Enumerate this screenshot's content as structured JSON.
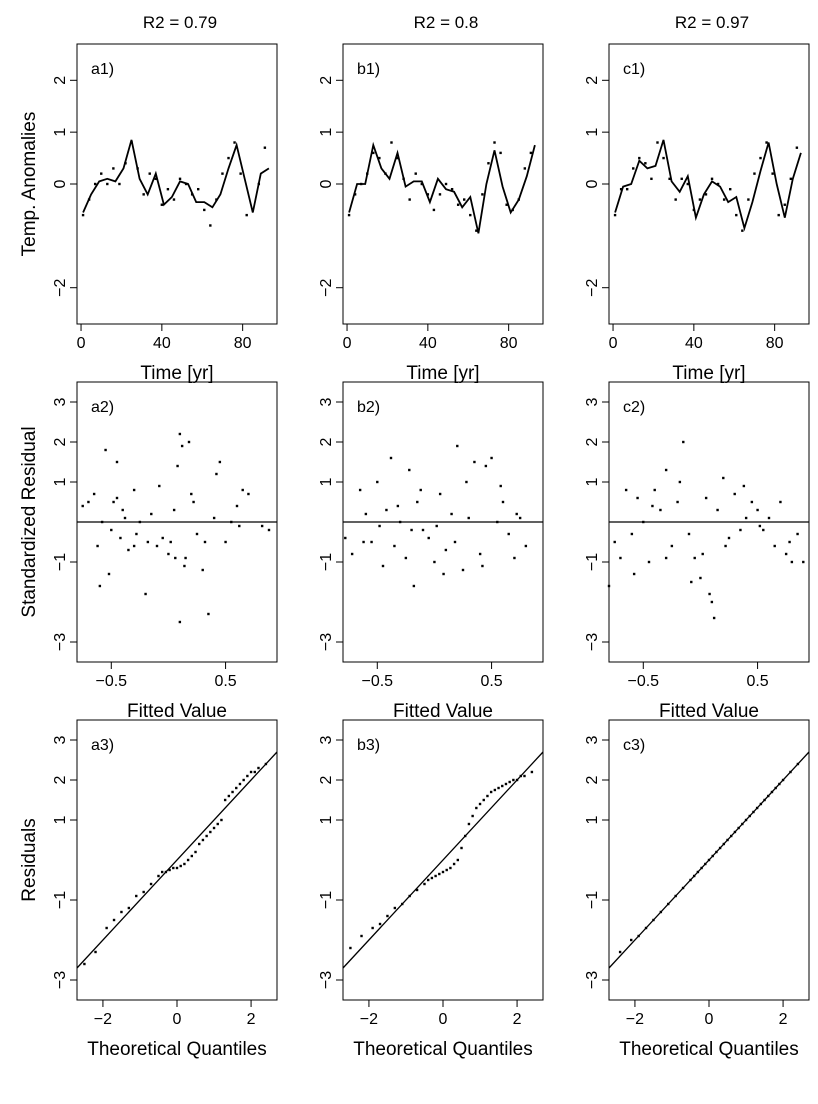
{
  "column_titles": [
    "R2 = 0.79",
    "R2 = 0.8",
    "R2 = 0.97"
  ],
  "row_ylabels": [
    "Temp. Anomalies",
    "Standardized Residual",
    "Residuals"
  ],
  "chart_data": [
    {
      "type": "line",
      "row": 0,
      "col": 0,
      "panel_label": "a1)",
      "xlabel": "Time [yr]",
      "ylabel": "Temp. Anomalies",
      "xlim": [
        -2,
        97
      ],
      "ylim": [
        -2.7,
        2.7
      ],
      "xticks": [
        0,
        40,
        80
      ],
      "yticks": [
        -2,
        0,
        1,
        2
      ],
      "ytick_labels": [
        "−2",
        "0",
        "1",
        "2"
      ],
      "series": [
        {
          "kind": "points",
          "x": [
            1,
            4,
            7,
            10,
            13,
            16,
            19,
            22,
            25,
            28,
            31,
            34,
            37,
            40,
            43,
            46,
            49,
            52,
            55,
            58,
            61,
            64,
            67,
            70,
            73,
            76,
            79,
            82,
            85,
            88,
            91
          ],
          "y": [
            -0.6,
            -0.3,
            0.0,
            0.2,
            0.0,
            0.3,
            0.0,
            0.4,
            0.8,
            0.3,
            -0.2,
            0.2,
            0.1,
            -0.4,
            -0.1,
            -0.3,
            0.1,
            0.0,
            -0.2,
            -0.1,
            -0.5,
            -0.8,
            -0.3,
            0.2,
            0.5,
            0.8,
            0.2,
            -0.6,
            -0.5,
            0.0,
            0.7
          ]
        },
        {
          "kind": "line",
          "x": [
            1,
            5,
            9,
            13,
            17,
            21,
            25,
            29,
            33,
            37,
            41,
            45,
            49,
            53,
            57,
            61,
            65,
            69,
            73,
            77,
            81,
            85,
            89,
            93
          ],
          "y": [
            -0.55,
            -0.2,
            0.05,
            0.1,
            0.05,
            0.3,
            0.85,
            0.1,
            -0.2,
            0.2,
            -0.4,
            -0.25,
            0.05,
            0.0,
            -0.35,
            -0.35,
            -0.45,
            -0.2,
            0.3,
            0.75,
            0.1,
            -0.55,
            0.2,
            0.3
          ]
        }
      ]
    },
    {
      "type": "line",
      "row": 0,
      "col": 1,
      "panel_label": "b1)",
      "xlabel": "Time [yr]",
      "ylabel": "",
      "xlim": [
        -2,
        97
      ],
      "ylim": [
        -2.7,
        2.7
      ],
      "xticks": [
        0,
        40,
        80
      ],
      "yticks": [
        -2,
        0,
        1,
        2
      ],
      "ytick_labels": [
        "−2",
        "0",
        "1",
        "2"
      ],
      "series": [
        {
          "kind": "points",
          "x": [
            1,
            4,
            7,
            10,
            13,
            16,
            19,
            22,
            25,
            28,
            31,
            34,
            37,
            40,
            43,
            46,
            49,
            52,
            55,
            58,
            61,
            64,
            67,
            70,
            73,
            76,
            79,
            82,
            85,
            88,
            91
          ],
          "y": [
            -0.6,
            -0.2,
            0.0,
            0.2,
            0.6,
            0.5,
            0.2,
            0.8,
            0.5,
            0.1,
            -0.3,
            0.2,
            0.0,
            -0.2,
            -0.5,
            -0.2,
            0.0,
            -0.1,
            -0.4,
            -0.3,
            -0.6,
            -0.9,
            -0.2,
            0.4,
            0.8,
            0.6,
            -0.4,
            -0.5,
            -0.3,
            0.3,
            0.6
          ]
        },
        {
          "kind": "line",
          "x": [
            1,
            5,
            9,
            13,
            17,
            21,
            25,
            29,
            33,
            37,
            41,
            45,
            49,
            53,
            57,
            61,
            65,
            69,
            73,
            77,
            81,
            85,
            89,
            93
          ],
          "y": [
            -0.55,
            0.0,
            0.0,
            0.75,
            0.3,
            0.1,
            0.6,
            -0.05,
            0.05,
            0.05,
            -0.35,
            0.1,
            -0.1,
            -0.15,
            -0.45,
            -0.25,
            -0.95,
            0.0,
            0.65,
            -0.05,
            -0.55,
            -0.3,
            0.15,
            0.75
          ]
        }
      ]
    },
    {
      "type": "line",
      "row": 0,
      "col": 2,
      "panel_label": "c1)",
      "xlabel": "Time [yr]",
      "ylabel": "",
      "xlim": [
        -2,
        97
      ],
      "ylim": [
        -2.7,
        2.7
      ],
      "xticks": [
        0,
        40,
        80
      ],
      "yticks": [
        -2,
        0,
        1,
        2
      ],
      "ytick_labels": [
        "−2",
        "0",
        "1",
        "2"
      ],
      "series": [
        {
          "kind": "points",
          "x": [
            1,
            4,
            7,
            10,
            13,
            16,
            19,
            22,
            25,
            28,
            31,
            34,
            37,
            40,
            43,
            46,
            49,
            52,
            55,
            58,
            61,
            64,
            67,
            70,
            73,
            76,
            79,
            82,
            85,
            88,
            91
          ],
          "y": [
            -0.6,
            -0.1,
            -0.1,
            0.3,
            0.5,
            0.4,
            0.1,
            0.8,
            0.5,
            0.1,
            -0.3,
            0.1,
            0.0,
            -0.5,
            -0.3,
            -0.2,
            0.1,
            0.0,
            -0.3,
            -0.1,
            -0.6,
            -0.9,
            -0.3,
            0.2,
            0.5,
            0.8,
            0.2,
            -0.6,
            -0.4,
            0.1,
            0.7
          ]
        },
        {
          "kind": "line",
          "x": [
            1,
            5,
            9,
            13,
            17,
            21,
            25,
            29,
            33,
            37,
            41,
            45,
            49,
            53,
            57,
            61,
            65,
            69,
            73,
            77,
            81,
            85,
            89,
            93
          ],
          "y": [
            -0.55,
            -0.05,
            0.0,
            0.45,
            0.3,
            0.35,
            0.85,
            0.05,
            -0.15,
            0.15,
            -0.65,
            -0.2,
            0.05,
            -0.05,
            -0.35,
            -0.25,
            -0.85,
            -0.35,
            0.25,
            0.8,
            0.0,
            -0.65,
            0.1,
            0.6
          ]
        }
      ]
    },
    {
      "type": "scatter",
      "row": 1,
      "col": 0,
      "panel_label": "a2)",
      "xlabel": "Fitted Value",
      "ylabel": "Standardized Residual",
      "xlim": [
        -0.8,
        0.95
      ],
      "ylim": [
        -3.5,
        3.5
      ],
      "xticks": [
        -0.5,
        0.5
      ],
      "xtick_labels": [
        "−0.5",
        "0.5"
      ],
      "yticks": [
        -3,
        -1,
        1,
        2,
        3
      ],
      "ytick_labels": [
        "−3",
        "−1",
        "1",
        "2",
        "3"
      ],
      "hline": 0,
      "x": [
        -0.75,
        -0.7,
        -0.65,
        -0.6,
        -0.58,
        -0.55,
        -0.5,
        -0.48,
        -0.45,
        -0.42,
        -0.4,
        -0.35,
        -0.3,
        -0.28,
        -0.25,
        -0.2,
        -0.15,
        -0.1,
        -0.05,
        0.0,
        0.02,
        0.05,
        0.08,
        0.1,
        0.12,
        0.15,
        0.18,
        0.2,
        0.25,
        0.3,
        0.35,
        0.4,
        0.45,
        0.5,
        0.55,
        0.6,
        0.65,
        0.7,
        -0.62,
        -0.52,
        -0.38,
        -0.18,
        -0.08,
        0.06,
        0.14,
        0.22,
        0.32,
        0.42,
        0.62,
        0.82,
        0.88,
        -0.45,
        -0.3,
        0.1
      ],
      "y": [
        0.4,
        0.5,
        0.7,
        -1.6,
        0.0,
        1.8,
        -0.2,
        0.5,
        1.5,
        -0.4,
        0.3,
        -0.7,
        0.8,
        -0.3,
        0.0,
        -1.8,
        0.2,
        -0.6,
        -0.4,
        -0.8,
        -0.5,
        0.3,
        1.4,
        2.2,
        1.9,
        -0.9,
        2.0,
        0.7,
        -0.3,
        -1.2,
        -2.3,
        0.1,
        1.5,
        -0.5,
        0.0,
        0.4,
        0.8,
        0.7,
        -0.6,
        -1.3,
        0.1,
        -0.5,
        0.9,
        -0.9,
        -1.1,
        0.5,
        -0.5,
        1.2,
        -0.1,
        -0.1,
        -0.2,
        0.6,
        -0.6,
        -2.5
      ]
    },
    {
      "type": "scatter",
      "row": 1,
      "col": 1,
      "panel_label": "b2)",
      "xlabel": "Fitted Value",
      "ylabel": "",
      "xlim": [
        -0.8,
        0.95
      ],
      "ylim": [
        -3.5,
        3.5
      ],
      "xticks": [
        -0.5,
        0.5
      ],
      "xtick_labels": [
        "−0.5",
        "0.5"
      ],
      "yticks": [
        -3,
        -1,
        1,
        2,
        3
      ],
      "ytick_labels": [
        "−3",
        "−1",
        "1",
        "2",
        "3"
      ],
      "hline": 0,
      "x": [
        -0.78,
        -0.72,
        -0.65,
        -0.6,
        -0.55,
        -0.5,
        -0.45,
        -0.42,
        -0.38,
        -0.35,
        -0.3,
        -0.25,
        -0.22,
        -0.18,
        -0.15,
        -0.1,
        -0.05,
        0.0,
        0.05,
        0.1,
        0.15,
        0.2,
        0.25,
        0.3,
        0.35,
        0.4,
        0.45,
        0.5,
        0.55,
        0.6,
        0.65,
        0.7,
        0.75,
        0.8,
        -0.48,
        -0.32,
        -0.12,
        0.08,
        0.18,
        0.28,
        0.42,
        0.58,
        0.72,
        -0.62,
        -0.2,
        0.02
      ],
      "y": [
        -0.4,
        -0.8,
        0.8,
        0.2,
        -0.5,
        1.0,
        -1.1,
        0.3,
        1.6,
        -0.6,
        0.0,
        -0.9,
        1.3,
        -1.6,
        0.5,
        -0.2,
        -0.4,
        -1.0,
        0.7,
        -0.7,
        0.2,
        1.9,
        -1.2,
        0.1,
        1.5,
        -0.8,
        1.4,
        1.6,
        0.0,
        0.5,
        -0.3,
        -0.9,
        0.1,
        -0.6,
        -0.1,
        0.4,
        0.8,
        -1.3,
        -0.5,
        1.0,
        -1.1,
        0.9,
        0.2,
        -0.5,
        -0.2,
        -0.1
      ]
    },
    {
      "type": "scatter",
      "row": 1,
      "col": 2,
      "panel_label": "c2)",
      "xlabel": "Fitted Value",
      "ylabel": "",
      "xlim": [
        -0.8,
        0.95
      ],
      "ylim": [
        -3.5,
        3.5
      ],
      "xticks": [
        -0.5,
        0.5
      ],
      "xtick_labels": [
        "−0.5",
        "0.5"
      ],
      "yticks": [
        -3,
        -1,
        1,
        2,
        3
      ],
      "ytick_labels": [
        "−3",
        "−1",
        "1",
        "2",
        "3"
      ],
      "hline": 0,
      "x": [
        -0.8,
        -0.75,
        -0.7,
        -0.65,
        -0.6,
        -0.55,
        -0.5,
        -0.45,
        -0.4,
        -0.35,
        -0.3,
        -0.25,
        -0.2,
        -0.15,
        -0.1,
        -0.05,
        0.0,
        0.05,
        0.1,
        0.15,
        0.2,
        0.25,
        0.3,
        0.35,
        0.4,
        0.45,
        0.5,
        0.55,
        0.6,
        0.65,
        0.7,
        0.75,
        0.8,
        0.85,
        0.9,
        -0.58,
        -0.42,
        -0.18,
        0.02,
        0.08,
        0.12,
        0.38,
        0.52,
        0.78,
        -0.3,
        -0.08,
        0.22
      ],
      "y": [
        -1.6,
        -0.5,
        -0.9,
        0.8,
        -0.3,
        0.6,
        0.0,
        -1.0,
        0.8,
        0.3,
        1.3,
        -0.6,
        0.5,
        2.0,
        -0.3,
        -0.9,
        -1.4,
        0.6,
        -2.0,
        0.3,
        1.1,
        -0.4,
        0.7,
        -0.2,
        0.1,
        0.5,
        0.3,
        -0.2,
        0.1,
        -0.6,
        0.5,
        -0.8,
        -1.0,
        -0.3,
        -1.0,
        -1.3,
        0.4,
        1.0,
        -0.8,
        -1.8,
        -2.4,
        0.9,
        -0.1,
        -0.5,
        -0.9,
        -1.5,
        -0.6
      ]
    },
    {
      "type": "scatter",
      "row": 2,
      "col": 0,
      "panel_label": "a3)",
      "xlabel": "Theoretical Quantiles",
      "ylabel": "Residuals",
      "xlim": [
        -2.7,
        2.7
      ],
      "ylim": [
        -3.5,
        3.5
      ],
      "xticks": [
        -2,
        0,
        2
      ],
      "xtick_labels": [
        "−2",
        "0",
        "2"
      ],
      "yticks": [
        -3,
        -1,
        1,
        2,
        3
      ],
      "ytick_labels": [
        "−3",
        "−1",
        "1",
        "2",
        "3"
      ],
      "refline": [
        [
          -2.7,
          -2.7
        ],
        [
          2.7,
          2.7
        ]
      ],
      "x": [
        -2.5,
        -2.2,
        -1.9,
        -1.7,
        -1.5,
        -1.3,
        -1.1,
        -0.9,
        -0.7,
        -0.5,
        -0.4,
        -0.3,
        -0.2,
        -0.1,
        0.0,
        0.1,
        0.2,
        0.3,
        0.4,
        0.5,
        0.6,
        0.7,
        0.8,
        0.9,
        1.0,
        1.1,
        1.2,
        1.3,
        1.4,
        1.5,
        1.6,
        1.7,
        1.8,
        1.9,
        2.0,
        2.1,
        2.2,
        2.4
      ],
      "y": [
        -2.6,
        -2.3,
        -1.7,
        -1.5,
        -1.3,
        -1.2,
        -0.9,
        -0.8,
        -0.6,
        -0.4,
        -0.3,
        -0.3,
        -0.25,
        -0.2,
        -0.2,
        -0.15,
        -0.1,
        0.0,
        0.1,
        0.2,
        0.4,
        0.5,
        0.6,
        0.7,
        0.8,
        0.9,
        1.0,
        1.5,
        1.6,
        1.7,
        1.8,
        1.9,
        2.0,
        2.1,
        2.2,
        2.2,
        2.3,
        2.4
      ]
    },
    {
      "type": "scatter",
      "row": 2,
      "col": 1,
      "panel_label": "b3)",
      "xlabel": "Theoretical Quantiles",
      "ylabel": "",
      "xlim": [
        -2.7,
        2.7
      ],
      "ylim": [
        -3.5,
        3.5
      ],
      "xticks": [
        -2,
        0,
        2
      ],
      "xtick_labels": [
        "−2",
        "0",
        "2"
      ],
      "yticks": [
        -3,
        -1,
        1,
        2,
        3
      ],
      "ytick_labels": [
        "−3",
        "−1",
        "1",
        "2",
        "3"
      ],
      "refline": [
        [
          -2.7,
          -2.7
        ],
        [
          2.7,
          2.7
        ]
      ],
      "x": [
        -2.5,
        -2.2,
        -1.9,
        -1.7,
        -1.5,
        -1.3,
        -1.1,
        -0.9,
        -0.7,
        -0.5,
        -0.4,
        -0.3,
        -0.2,
        -0.1,
        0.0,
        0.1,
        0.2,
        0.3,
        0.4,
        0.5,
        0.6,
        0.7,
        0.8,
        0.9,
        1.0,
        1.1,
        1.2,
        1.3,
        1.4,
        1.5,
        1.6,
        1.7,
        1.8,
        1.9,
        2.0,
        2.1,
        2.2,
        2.4
      ],
      "y": [
        -2.2,
        -1.9,
        -1.7,
        -1.6,
        -1.4,
        -1.2,
        -1.1,
        -0.9,
        -0.75,
        -0.6,
        -0.5,
        -0.45,
        -0.4,
        -0.35,
        -0.3,
        -0.25,
        -0.2,
        -0.1,
        0.0,
        0.3,
        0.6,
        0.9,
        1.1,
        1.3,
        1.4,
        1.5,
        1.6,
        1.7,
        1.75,
        1.8,
        1.85,
        1.9,
        1.95,
        2.0,
        2.0,
        2.1,
        2.1,
        2.2
      ]
    },
    {
      "type": "scatter",
      "row": 2,
      "col": 2,
      "panel_label": "c3)",
      "xlabel": "Theoretical Quantiles",
      "ylabel": "",
      "xlim": [
        -2.7,
        2.7
      ],
      "ylim": [
        -3.5,
        3.5
      ],
      "xticks": [
        -2,
        0,
        2
      ],
      "xtick_labels": [
        "−2",
        "0",
        "2"
      ],
      "yticks": [
        -3,
        -1,
        1,
        2,
        3
      ],
      "ytick_labels": [
        "−3",
        "−1",
        "1",
        "2",
        "3"
      ],
      "refline": [
        [
          -2.7,
          -2.7
        ],
        [
          2.7,
          2.7
        ]
      ],
      "x": [
        -2.4,
        -2.1,
        -1.9,
        -1.7,
        -1.5,
        -1.3,
        -1.1,
        -0.9,
        -0.7,
        -0.5,
        -0.4,
        -0.3,
        -0.2,
        -0.1,
        0.0,
        0.1,
        0.2,
        0.3,
        0.4,
        0.5,
        0.6,
        0.7,
        0.8,
        0.9,
        1.0,
        1.1,
        1.2,
        1.3,
        1.4,
        1.5,
        1.6,
        1.7,
        1.8,
        1.9,
        2.0,
        2.2,
        2.4
      ],
      "y": [
        -2.3,
        -2.0,
        -1.9,
        -1.7,
        -1.5,
        -1.3,
        -1.1,
        -0.9,
        -0.7,
        -0.5,
        -0.4,
        -0.3,
        -0.2,
        -0.1,
        0.0,
        0.1,
        0.2,
        0.3,
        0.4,
        0.5,
        0.6,
        0.7,
        0.8,
        0.9,
        1.0,
        1.1,
        1.2,
        1.3,
        1.4,
        1.5,
        1.6,
        1.7,
        1.8,
        1.9,
        2.0,
        2.2,
        2.4
      ]
    }
  ]
}
